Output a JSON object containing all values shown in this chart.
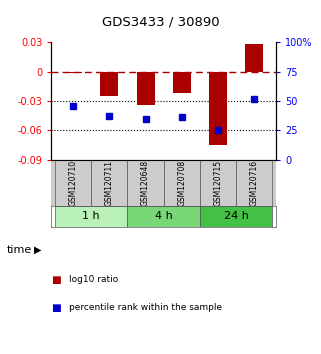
{
  "title": "GDS3433 / 30890",
  "samples": [
    "GSM120710",
    "GSM120711",
    "GSM120648",
    "GSM120708",
    "GSM120715",
    "GSM120716"
  ],
  "log10_ratio": [
    -0.001,
    -0.025,
    -0.034,
    -0.022,
    -0.075,
    0.028
  ],
  "percentile_rank": [
    46,
    37,
    35,
    36,
    25,
    52
  ],
  "groups": [
    {
      "label": "1 h",
      "indices": [
        0,
        1
      ],
      "color": "#b8f0b8"
    },
    {
      "label": "4 h",
      "indices": [
        2,
        3
      ],
      "color": "#78d878"
    },
    {
      "label": "24 h",
      "indices": [
        4,
        5
      ],
      "color": "#44c044"
    }
  ],
  "ylim_left": [
    -0.09,
    0.03
  ],
  "ylim_right": [
    0,
    100
  ],
  "yticks_left": [
    -0.09,
    -0.06,
    -0.03,
    0,
    0.03
  ],
  "yticks_right": [
    0,
    25,
    50,
    75,
    100
  ],
  "hlines_dotted": [
    -0.03,
    -0.06
  ],
  "bar_color": "#aa0000",
  "dot_color": "#0000cc",
  "background_color": "#ffffff",
  "label_red": "log10 ratio",
  "label_blue": "percentile rank within the sample"
}
